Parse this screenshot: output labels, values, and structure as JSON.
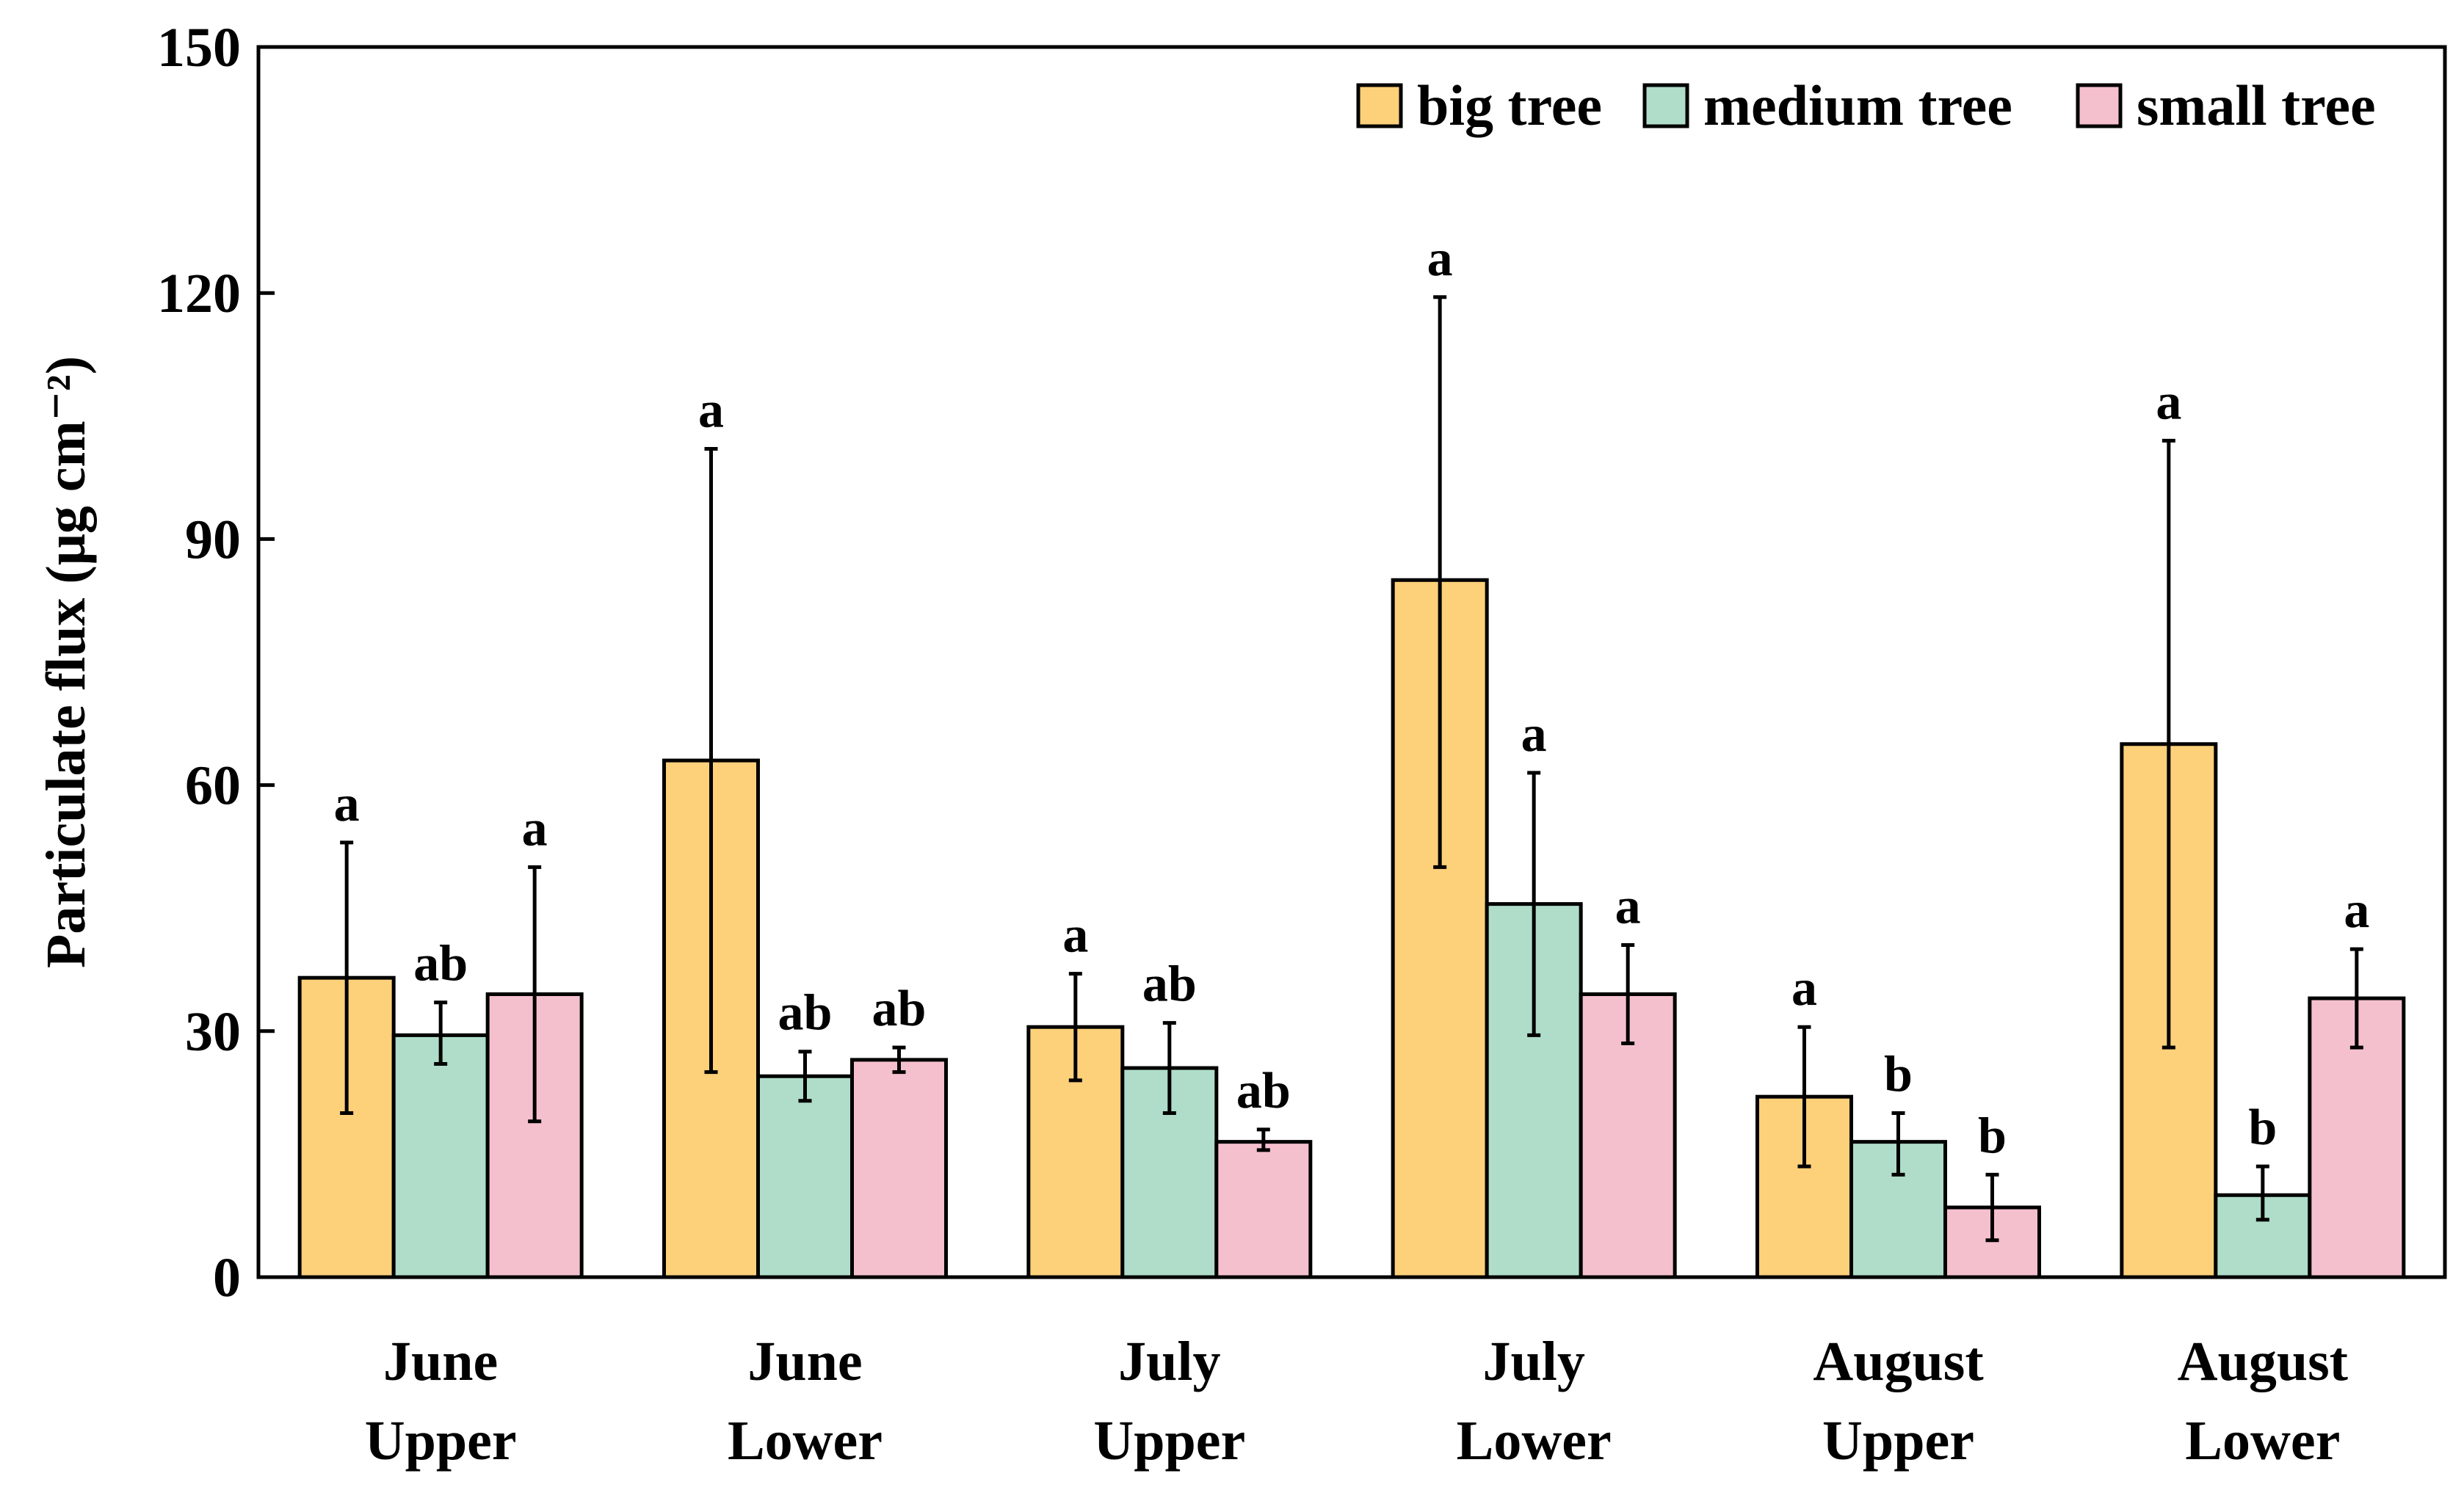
{
  "chart_data": {
    "type": "bar",
    "title": "",
    "xlabel": "",
    "ylabel": "Particulate flux (μg cm⁻²)",
    "ylim": [
      0,
      150
    ],
    "yticks": [
      0,
      30,
      60,
      90,
      120,
      150
    ],
    "ytick_labels": [
      "0",
      "30",
      "60",
      "90",
      "120",
      "150"
    ],
    "categories": [
      [
        "June",
        "Upper"
      ],
      [
        "June",
        "Lower"
      ],
      [
        "July",
        "Upper"
      ],
      [
        "July",
        "Lower"
      ],
      [
        "August",
        "Upper"
      ],
      [
        "August",
        "Lower"
      ]
    ],
    "legend_position": "top-right",
    "series": [
      {
        "name": "big tree",
        "color": "#FDD07A",
        "values": [
          36.5,
          63,
          30.5,
          85,
          22,
          65
        ],
        "error_low": [
          20,
          25,
          24,
          50,
          13.5,
          28
        ],
        "error_high": [
          53,
          101,
          37,
          119.5,
          30.5,
          102
        ],
        "significance": [
          "a",
          "a",
          "a",
          "a",
          "a",
          "a"
        ]
      },
      {
        "name": "medium tree",
        "color": "#AFDDC9",
        "values": [
          29.5,
          24.5,
          25.5,
          45.5,
          16.5,
          10
        ],
        "error_low": [
          26,
          21.5,
          20,
          29.5,
          12.5,
          7
        ],
        "error_high": [
          33.5,
          27.5,
          31,
          61.5,
          20,
          13.5
        ],
        "significance": [
          "ab",
          "ab",
          "ab",
          "a",
          "b",
          "b"
        ]
      },
      {
        "name": "small tree",
        "color": "#F5C0CE",
        "values": [
          34.5,
          26.5,
          16.5,
          34.5,
          8.5,
          34
        ],
        "error_low": [
          19,
          25,
          15.5,
          28.5,
          4.5,
          28
        ],
        "error_high": [
          50,
          28,
          18,
          40.5,
          12.5,
          40
        ],
        "significance": [
          "a",
          "ab",
          "ab",
          "a",
          "b",
          "a"
        ]
      }
    ]
  }
}
